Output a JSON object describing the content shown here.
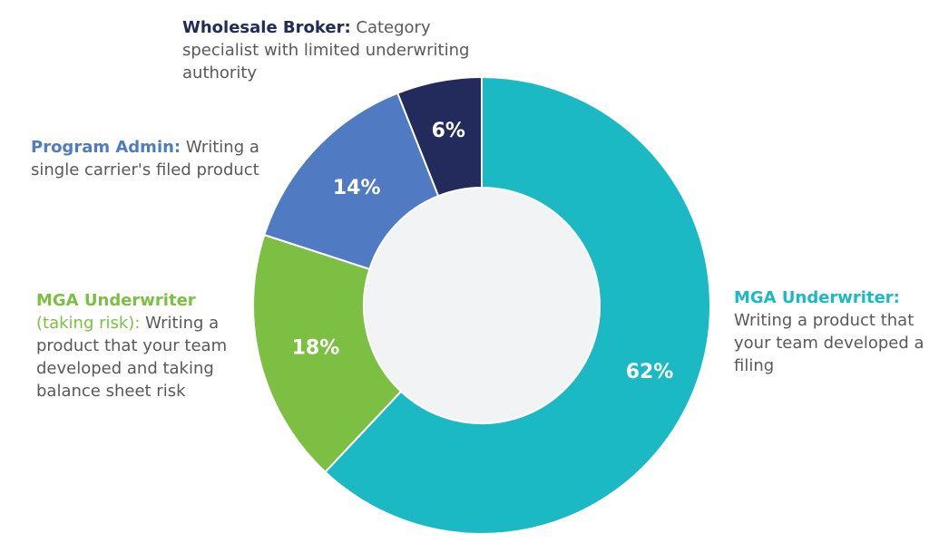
{
  "chart_data": {
    "type": "pie",
    "donut": true,
    "categories": [
      "MGA Underwriter",
      "MGA Underwriter (taking risk)",
      "Program Admin",
      "Wholesale Broker"
    ],
    "values": [
      62,
      18,
      14,
      6
    ],
    "data_labels": [
      "62%",
      "18%",
      "14%",
      "6%"
    ],
    "colors": [
      "#1bb9c4",
      "#7cbf42",
      "#507ac1",
      "#232a5c"
    ],
    "center_fill": "#f2f3f5"
  },
  "annotations": {
    "wholesale": {
      "heading": "Wholesale Broker:",
      "text": "Category specialist with limited underwriting authority",
      "color": "#232a5c"
    },
    "program": {
      "heading": "Program Admin:",
      "text": "Writing a single carrier's filed product",
      "color": "#507ac1"
    },
    "mga_risk": {
      "heading": "MGA Underwriter",
      "subheading": "(taking risk)",
      "colon": ":",
      "text": "Writing a product that your team developed and taking balance sheet risk",
      "color": "#7cbf42"
    },
    "mga": {
      "heading": "MGA Underwriter:",
      "text": "Writing a product that your team developed a filing",
      "color": "#1bb9c4"
    }
  }
}
